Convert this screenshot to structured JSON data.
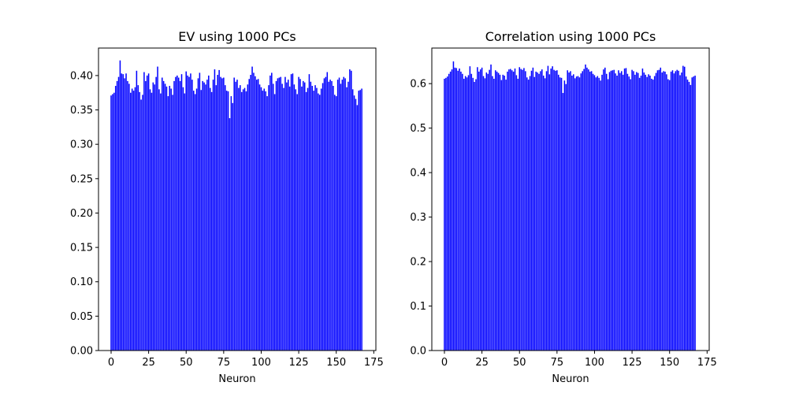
{
  "figure": {
    "background": "#ffffff",
    "bar_color": "#0000ff"
  },
  "chart_data": [
    {
      "type": "bar",
      "title": "EV using 1000 PCs",
      "xlabel": "Neuron",
      "ylabel": "",
      "xlim": [
        -8.4,
        176.4
      ],
      "ylim": [
        0,
        0.44
      ],
      "xticks": [
        0,
        25,
        50,
        75,
        100,
        125,
        150,
        175
      ],
      "xtick_labels": [
        "0",
        "25",
        "50",
        "75",
        "100",
        "125",
        "150",
        "175"
      ],
      "yticks": [
        0.0,
        0.05,
        0.1,
        0.15,
        0.2,
        0.25,
        0.3,
        0.35,
        0.4
      ],
      "ytick_labels": [
        "0.00",
        "0.05",
        "0.10",
        "0.15",
        "0.20",
        "0.25",
        "0.30",
        "0.35",
        "0.40"
      ],
      "grid": false,
      "x": [
        0,
        1,
        2,
        3,
        4,
        5,
        6,
        7,
        8,
        9,
        10,
        11,
        12,
        13,
        14,
        15,
        16,
        17,
        18,
        19,
        20,
        21,
        22,
        23,
        24,
        25,
        26,
        27,
        28,
        29,
        30,
        31,
        32,
        33,
        34,
        35,
        36,
        37,
        38,
        39,
        40,
        41,
        42,
        43,
        44,
        45,
        46,
        47,
        48,
        49,
        50,
        51,
        52,
        53,
        54,
        55,
        56,
        57,
        58,
        59,
        60,
        61,
        62,
        63,
        64,
        65,
        66,
        67,
        68,
        69,
        70,
        71,
        72,
        73,
        74,
        75,
        76,
        77,
        78,
        79,
        80,
        81,
        82,
        83,
        84,
        85,
        86,
        87,
        88,
        89,
        90,
        91,
        92,
        93,
        94,
        95,
        96,
        97,
        98,
        99,
        100,
        101,
        102,
        103,
        104,
        105,
        106,
        107,
        108,
        109,
        110,
        111,
        112,
        113,
        114,
        115,
        116,
        117,
        118,
        119,
        120,
        121,
        122,
        123,
        124,
        125,
        126,
        127,
        128,
        129,
        130,
        131,
        132,
        133,
        134,
        135,
        136,
        137,
        138,
        139,
        140,
        141,
        142,
        143,
        144,
        145,
        146,
        147,
        148,
        149,
        150,
        151,
        152,
        153,
        154,
        155,
        156,
        157,
        158,
        159,
        160,
        161,
        162,
        163,
        164,
        165,
        166,
        167
      ],
      "values": [
        0.371,
        0.373,
        0.375,
        0.385,
        0.392,
        0.398,
        0.422,
        0.403,
        0.402,
        0.396,
        0.403,
        0.392,
        0.388,
        0.375,
        0.381,
        0.378,
        0.383,
        0.407,
        0.386,
        0.376,
        0.365,
        0.372,
        0.405,
        0.392,
        0.4,
        0.403,
        0.38,
        0.375,
        0.39,
        0.387,
        0.398,
        0.413,
        0.38,
        0.374,
        0.397,
        0.392,
        0.388,
        0.384,
        0.37,
        0.385,
        0.381,
        0.372,
        0.392,
        0.398,
        0.4,
        0.397,
        0.392,
        0.402,
        0.383,
        0.374,
        0.406,
        0.4,
        0.398,
        0.403,
        0.394,
        0.378,
        0.373,
        0.381,
        0.396,
        0.404,
        0.379,
        0.392,
        0.39,
        0.387,
        0.394,
        0.4,
        0.382,
        0.376,
        0.394,
        0.409,
        0.386,
        0.401,
        0.408,
        0.398,
        0.396,
        0.397,
        0.386,
        0.378,
        0.377,
        0.338,
        0.37,
        0.36,
        0.397,
        0.391,
        0.394,
        0.382,
        0.386,
        0.376,
        0.38,
        0.382,
        0.377,
        0.387,
        0.395,
        0.401,
        0.413,
        0.404,
        0.399,
        0.394,
        0.395,
        0.387,
        0.383,
        0.378,
        0.381,
        0.377,
        0.37,
        0.386,
        0.4,
        0.404,
        0.388,
        0.373,
        0.392,
        0.396,
        0.397,
        0.398,
        0.388,
        0.382,
        0.398,
        0.39,
        0.394,
        0.384,
        0.402,
        0.403,
        0.387,
        0.38,
        0.373,
        0.398,
        0.395,
        0.384,
        0.392,
        0.39,
        0.376,
        0.382,
        0.402,
        0.391,
        0.385,
        0.378,
        0.386,
        0.382,
        0.374,
        0.372,
        0.381,
        0.389,
        0.396,
        0.398,
        0.405,
        0.391,
        0.394,
        0.392,
        0.385,
        0.372,
        0.37,
        0.394,
        0.397,
        0.388,
        0.394,
        0.398,
        0.396,
        0.383,
        0.391,
        0.409,
        0.407,
        0.38,
        0.371,
        0.366,
        0.357,
        0.378,
        0.379,
        0.381
      ]
    },
    {
      "type": "bar",
      "title": "Correlation using 1000 PCs",
      "xlabel": "Neuron",
      "ylabel": "",
      "xlim": [
        -8.4,
        176.4
      ],
      "ylim": [
        0,
        0.68
      ],
      "xticks": [
        0,
        25,
        50,
        75,
        100,
        125,
        150,
        175
      ],
      "xtick_labels": [
        "0",
        "25",
        "50",
        "75",
        "100",
        "125",
        "150",
        "175"
      ],
      "yticks": [
        0.0,
        0.1,
        0.2,
        0.3,
        0.4,
        0.5,
        0.6
      ],
      "ytick_labels": [
        "0.0",
        "0.1",
        "0.2",
        "0.3",
        "0.4",
        "0.5",
        "0.6"
      ],
      "grid": false,
      "x": [
        0,
        1,
        2,
        3,
        4,
        5,
        6,
        7,
        8,
        9,
        10,
        11,
        12,
        13,
        14,
        15,
        16,
        17,
        18,
        19,
        20,
        21,
        22,
        23,
        24,
        25,
        26,
        27,
        28,
        29,
        30,
        31,
        32,
        33,
        34,
        35,
        36,
        37,
        38,
        39,
        40,
        41,
        42,
        43,
        44,
        45,
        46,
        47,
        48,
        49,
        50,
        51,
        52,
        53,
        54,
        55,
        56,
        57,
        58,
        59,
        60,
        61,
        62,
        63,
        64,
        65,
        66,
        67,
        68,
        69,
        70,
        71,
        72,
        73,
        74,
        75,
        76,
        77,
        78,
        79,
        80,
        81,
        82,
        83,
        84,
        85,
        86,
        87,
        88,
        89,
        90,
        91,
        92,
        93,
        94,
        95,
        96,
        97,
        98,
        99,
        100,
        101,
        102,
        103,
        104,
        105,
        106,
        107,
        108,
        109,
        110,
        111,
        112,
        113,
        114,
        115,
        116,
        117,
        118,
        119,
        120,
        121,
        122,
        123,
        124,
        125,
        126,
        127,
        128,
        129,
        130,
        131,
        132,
        133,
        134,
        135,
        136,
        137,
        138,
        139,
        140,
        141,
        142,
        143,
        144,
        145,
        146,
        147,
        148,
        149,
        150,
        151,
        152,
        153,
        154,
        155,
        156,
        157,
        158,
        159,
        160,
        161,
        162,
        163,
        164,
        165,
        166,
        167
      ],
      "values": [
        0.611,
        0.613,
        0.616,
        0.622,
        0.627,
        0.632,
        0.65,
        0.636,
        0.635,
        0.629,
        0.634,
        0.627,
        0.622,
        0.611,
        0.617,
        0.614,
        0.619,
        0.639,
        0.622,
        0.613,
        0.604,
        0.61,
        0.637,
        0.627,
        0.632,
        0.636,
        0.617,
        0.612,
        0.625,
        0.622,
        0.631,
        0.643,
        0.617,
        0.611,
        0.63,
        0.627,
        0.624,
        0.62,
        0.608,
        0.62,
        0.618,
        0.609,
        0.627,
        0.632,
        0.633,
        0.63,
        0.627,
        0.634,
        0.619,
        0.611,
        0.637,
        0.633,
        0.631,
        0.635,
        0.628,
        0.614,
        0.609,
        0.617,
        0.629,
        0.636,
        0.615,
        0.627,
        0.625,
        0.622,
        0.628,
        0.632,
        0.618,
        0.612,
        0.628,
        0.64,
        0.621,
        0.634,
        0.639,
        0.631,
        0.629,
        0.63,
        0.62,
        0.614,
        0.613,
        0.579,
        0.607,
        0.599,
        0.63,
        0.625,
        0.628,
        0.618,
        0.621,
        0.612,
        0.616,
        0.617,
        0.614,
        0.623,
        0.628,
        0.633,
        0.643,
        0.636,
        0.632,
        0.627,
        0.628,
        0.622,
        0.619,
        0.614,
        0.617,
        0.613,
        0.607,
        0.62,
        0.632,
        0.636,
        0.622,
        0.61,
        0.626,
        0.629,
        0.63,
        0.631,
        0.623,
        0.618,
        0.63,
        0.624,
        0.628,
        0.62,
        0.634,
        0.635,
        0.622,
        0.616,
        0.61,
        0.631,
        0.628,
        0.62,
        0.626,
        0.624,
        0.613,
        0.618,
        0.634,
        0.625,
        0.62,
        0.615,
        0.621,
        0.618,
        0.611,
        0.609,
        0.617,
        0.624,
        0.63,
        0.631,
        0.636,
        0.625,
        0.628,
        0.627,
        0.621,
        0.61,
        0.608,
        0.627,
        0.63,
        0.623,
        0.628,
        0.631,
        0.629,
        0.619,
        0.625,
        0.64,
        0.638,
        0.616,
        0.609,
        0.604,
        0.597,
        0.614,
        0.616,
        0.618
      ]
    }
  ]
}
